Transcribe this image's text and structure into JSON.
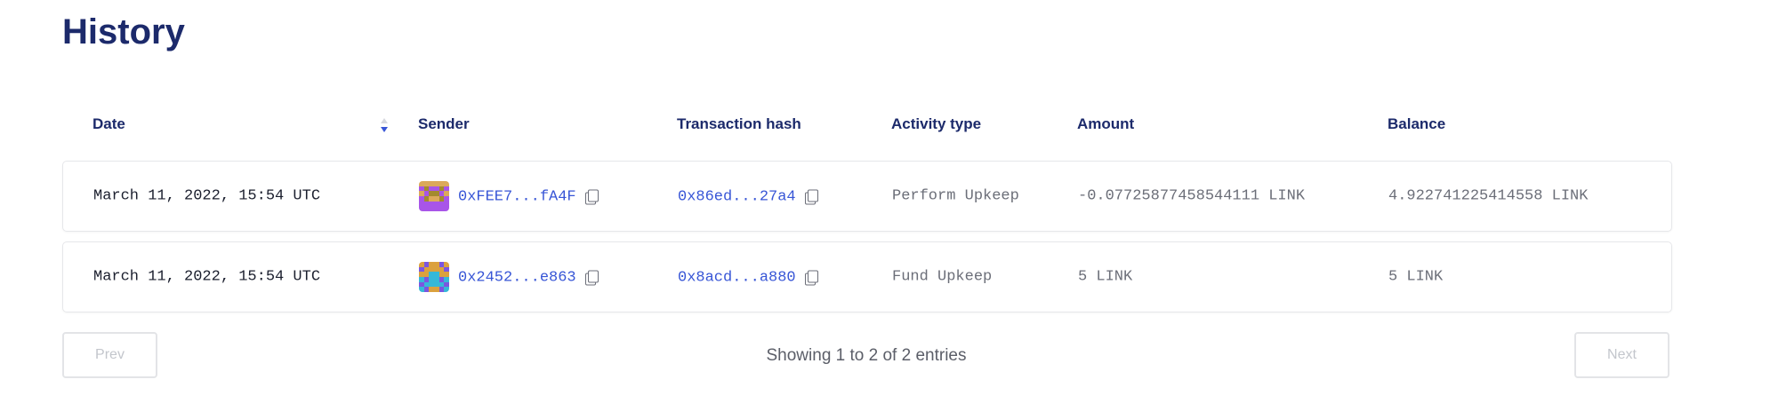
{
  "page": {
    "title": "History"
  },
  "table": {
    "columns": [
      "Date",
      "Sender",
      "Transaction hash",
      "Activity type",
      "Amount",
      "Balance"
    ],
    "sort": {
      "column": "Date",
      "direction": "descending"
    },
    "rows": [
      {
        "date": "March 11, 2022, 15:54 UTC",
        "sender": "0xFEE7...fA4F",
        "tx_hash": "0x86ed...27a4",
        "activity": "Perform Upkeep",
        "amount": "-0.07725877458544111 LINK",
        "balance": "4.922741225414558 LINK"
      },
      {
        "date": "March 11, 2022, 15:54 UTC",
        "sender": "0x2452...e863",
        "tx_hash": "0x8acd...a880",
        "activity": "Fund Upkeep",
        "amount": "5 LINK",
        "balance": "5 LINK"
      }
    ]
  },
  "pagination": {
    "prev_label": "Prev",
    "next_label": "Next",
    "summary": "Showing 1 to 2 of 2 entries"
  },
  "colors": {
    "heading": "#1c2a6b",
    "link": "#3755d6",
    "muted": "#6b6e78"
  },
  "icons": {
    "sort": "sort-desc-icon",
    "copy": "copy-icon",
    "avatar": "identicon-avatar"
  }
}
